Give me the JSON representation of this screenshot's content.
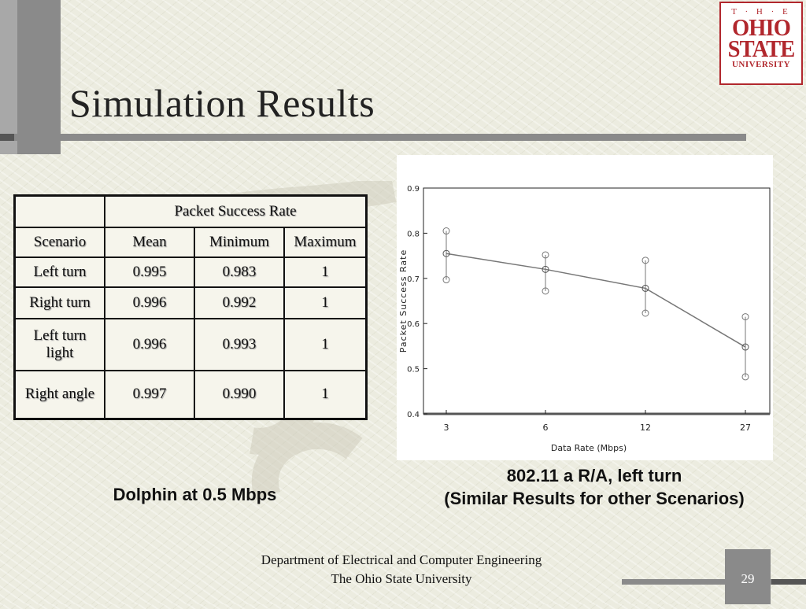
{
  "slide": {
    "title": "Simulation Results",
    "page_number": "29"
  },
  "logo": {
    "line1": "T · H · E",
    "line2": "OHIO",
    "line3": "STATE",
    "line4": "UNIVERSITY"
  },
  "table": {
    "group_header": "Packet Success Rate",
    "columns": [
      "Scenario",
      "Mean",
      "Minimum",
      "Maximum"
    ],
    "rows": [
      {
        "scenario": "Left turn",
        "mean": "0.995",
        "min": "0.983",
        "max": "1"
      },
      {
        "scenario": "Right turn",
        "mean": "0.996",
        "min": "0.992",
        "max": "1"
      },
      {
        "scenario_line1": "Left turn",
        "scenario_line2": "light",
        "mean": "0.996",
        "min": "0.993",
        "max": "1"
      },
      {
        "scenario": "Right angle",
        "mean": "0.997",
        "min": "0.990",
        "max": "1"
      }
    ]
  },
  "captions": {
    "left": "Dolphin  at 0.5 Mbps",
    "right_line1": "802.11 a R/A, left turn",
    "right_line2": "(Similar Results for other Scenarios)"
  },
  "footer": {
    "line1": "Department of Electrical and Computer Engineering",
    "line2": "The Ohio State University"
  },
  "chart_data": {
    "type": "line",
    "categories": [
      "3",
      "6",
      "12",
      "27"
    ],
    "series": [
      {
        "mean": [
          0.755,
          0.72,
          0.678,
          0.548
        ],
        "upper": [
          0.805,
          0.752,
          0.74,
          0.615
        ],
        "lower": [
          0.697,
          0.672,
          0.623,
          0.482
        ]
      }
    ],
    "xlabel": "Data Rate (Mbps)",
    "ylabel": "Packet Success Rate",
    "ylim": [
      0.4,
      0.9
    ],
    "yticks": [
      "0.4",
      "0.5",
      "0.6",
      "0.7",
      "0.8",
      "0.9"
    ],
    "grid": false
  }
}
